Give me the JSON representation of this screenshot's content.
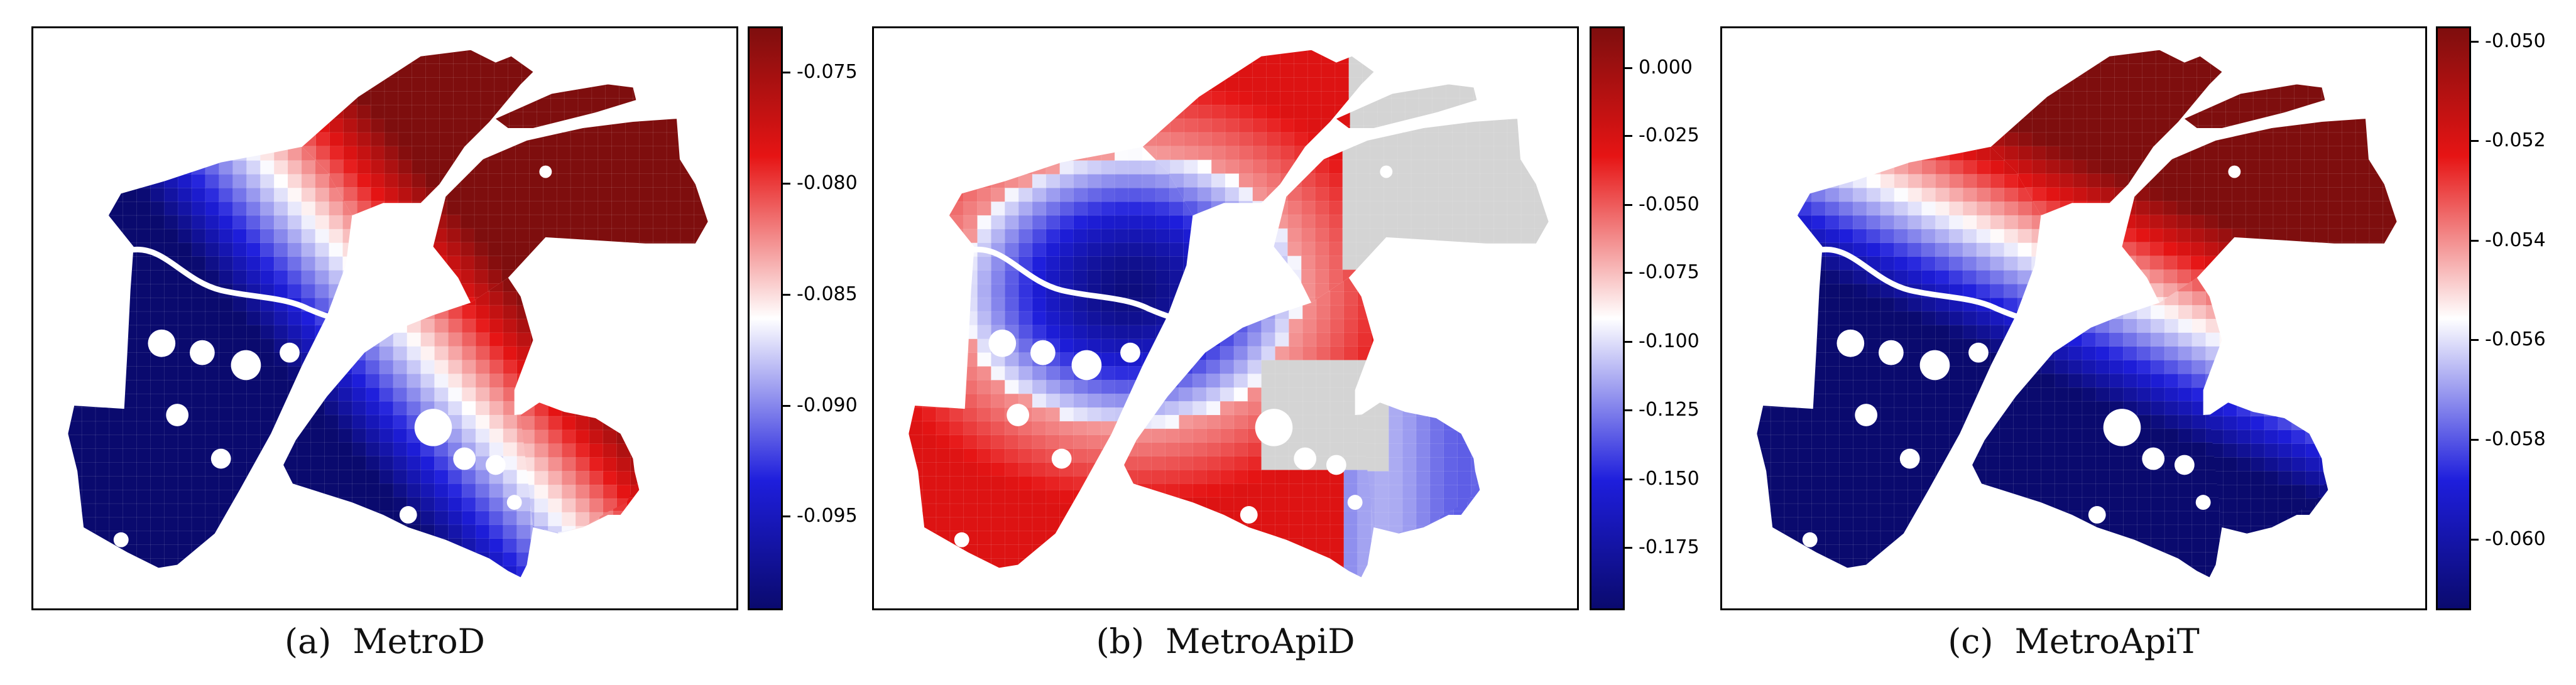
{
  "colors": {
    "low": "#0a0a6e",
    "mid": "#ffffff",
    "high": "#7e0e0e",
    "nodata": "#d4d4d4",
    "river": "#ffffff"
  },
  "panels": [
    {
      "caption_letter": "(a)",
      "caption_name": "MetroD",
      "colorbar_ticks": [
        "-0.075",
        "-0.080",
        "-0.085",
        "-0.090",
        "-0.095"
      ],
      "tick_fracs": [
        0.079,
        0.269,
        0.459,
        0.649,
        0.839
      ],
      "pattern": "a"
    },
    {
      "caption_letter": "(b)",
      "caption_name": "MetroApiD",
      "colorbar_ticks": [
        "0.000",
        "-0.025",
        "-0.050",
        "-0.075",
        "-0.100",
        "-0.125",
        "-0.150",
        "-0.175"
      ],
      "tick_fracs": [
        0.071,
        0.187,
        0.305,
        0.422,
        0.54,
        0.657,
        0.775,
        0.892
      ],
      "pattern": "b"
    },
    {
      "caption_letter": "(c)",
      "caption_name": "MetroApiT",
      "colorbar_ticks": [
        "-0.050",
        "-0.052",
        "-0.054",
        "-0.056",
        "-0.058",
        "-0.060"
      ],
      "tick_fracs": [
        0.026,
        0.196,
        0.367,
        0.537,
        0.708,
        0.878
      ],
      "pattern": "c"
    }
  ]
}
